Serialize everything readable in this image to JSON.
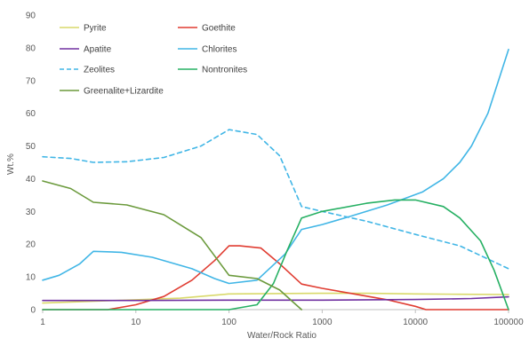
{
  "chart_data": {
    "type": "line",
    "title": "",
    "xlabel": "Water/Rock Ratio",
    "ylabel": "Wt.%",
    "xscale": "log",
    "xlim": [
      1,
      100000
    ],
    "ylim": [
      0,
      90
    ],
    "x_ticks": [
      "1",
      "10",
      "100",
      "1000",
      "10000",
      "100000"
    ],
    "y_ticks": [
      "0",
      "10",
      "20",
      "30",
      "40",
      "50",
      "60",
      "70",
      "80",
      "90"
    ],
    "grid": false,
    "legend_position": "top-left",
    "series": [
      {
        "name": "Pyrite",
        "color": "#d9d96a",
        "dash": "solid",
        "points": [
          [
            1,
            2
          ],
          [
            3,
            2.5
          ],
          [
            10,
            3
          ],
          [
            30,
            3.5
          ],
          [
            100,
            4.8
          ],
          [
            300,
            4.9
          ],
          [
            1000,
            5
          ],
          [
            3000,
            5
          ],
          [
            10000,
            4.8
          ],
          [
            30000,
            4.7
          ],
          [
            100000,
            4.6
          ]
        ]
      },
      {
        "name": "Goethite",
        "color": "#e03c31",
        "dash": "solid",
        "points": [
          [
            1,
            0
          ],
          [
            5,
            0
          ],
          [
            10,
            1.5
          ],
          [
            20,
            4
          ],
          [
            40,
            9
          ],
          [
            70,
            15
          ],
          [
            100,
            19.5
          ],
          [
            130,
            19.5
          ],
          [
            220,
            18.8
          ],
          [
            350,
            14
          ],
          [
            600,
            7.8
          ],
          [
            1000,
            6.5
          ],
          [
            2000,
            5
          ],
          [
            5000,
            3
          ],
          [
            10000,
            1
          ],
          [
            13000,
            0
          ],
          [
            100000,
            0
          ]
        ]
      },
      {
        "name": "Apatite",
        "color": "#7030a0",
        "dash": "solid",
        "points": [
          [
            1,
            2.8
          ],
          [
            10,
            2.8
          ],
          [
            100,
            2.9
          ],
          [
            1000,
            2.9
          ],
          [
            10000,
            3.1
          ],
          [
            40000,
            3.4
          ],
          [
            100000,
            3.9
          ]
        ]
      },
      {
        "name": "Chlorites",
        "color": "#41b6e6",
        "dash": "solid",
        "points": [
          [
            1,
            9
          ],
          [
            1.5,
            10.5
          ],
          [
            2.5,
            14
          ],
          [
            3.5,
            17.8
          ],
          [
            7,
            17.5
          ],
          [
            15,
            16
          ],
          [
            40,
            12.5
          ],
          [
            70,
            9.5
          ],
          [
            100,
            8
          ],
          [
            200,
            9
          ],
          [
            400,
            17
          ],
          [
            600,
            24.5
          ],
          [
            1000,
            26
          ],
          [
            2000,
            28.5
          ],
          [
            5000,
            32
          ],
          [
            12000,
            36
          ],
          [
            20000,
            40
          ],
          [
            30000,
            45
          ],
          [
            40000,
            50
          ],
          [
            60000,
            60
          ],
          [
            100000,
            79.5
          ]
        ]
      },
      {
        "name": "Zeolites",
        "color": "#41b6e6",
        "dash": "dashed",
        "points": [
          [
            1,
            46.7
          ],
          [
            2,
            46.2
          ],
          [
            3.5,
            45
          ],
          [
            8,
            45.2
          ],
          [
            20,
            46.5
          ],
          [
            50,
            50
          ],
          [
            100,
            55
          ],
          [
            200,
            53.5
          ],
          [
            350,
            47
          ],
          [
            600,
            31.5
          ],
          [
            1000,
            30
          ],
          [
            3000,
            27
          ],
          [
            10000,
            23
          ],
          [
            30000,
            19.5
          ],
          [
            100000,
            12.5
          ]
        ]
      },
      {
        "name": "Nontronites",
        "color": "#26b063",
        "dash": "solid",
        "points": [
          [
            1,
            0
          ],
          [
            100,
            0
          ],
          [
            200,
            1.5
          ],
          [
            300,
            8
          ],
          [
            420,
            18
          ],
          [
            600,
            28
          ],
          [
            1000,
            30
          ],
          [
            3000,
            32.5
          ],
          [
            6000,
            33.5
          ],
          [
            10000,
            33.5
          ],
          [
            20000,
            31.5
          ],
          [
            30000,
            28
          ],
          [
            50000,
            21
          ],
          [
            70000,
            12
          ],
          [
            100000,
            0
          ]
        ]
      },
      {
        "name": "Greenalite+Lizardite",
        "color": "#6b9a3c",
        "dash": "solid",
        "points": [
          [
            1,
            39.3
          ],
          [
            2,
            37
          ],
          [
            3.5,
            32.8
          ],
          [
            8,
            32
          ],
          [
            20,
            29
          ],
          [
            50,
            22
          ],
          [
            100,
            10.5
          ],
          [
            200,
            9.5
          ],
          [
            350,
            6
          ],
          [
            500,
            2
          ],
          [
            600,
            0
          ]
        ]
      }
    ]
  }
}
